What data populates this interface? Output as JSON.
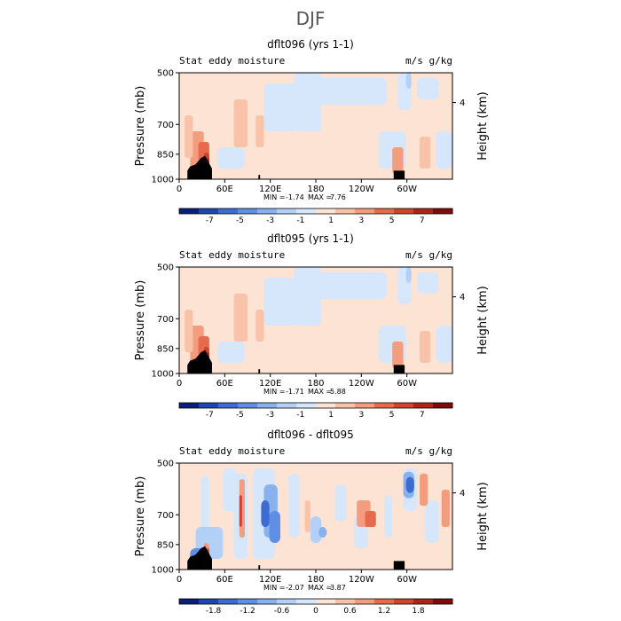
{
  "figure_title": "DJF",
  "colors": {
    "warm": [
      "#fde3d4",
      "#f9c3aa",
      "#f49c7e",
      "#e86a4d",
      "#d2432e",
      "#b12218",
      "#7f0a0a"
    ],
    "cool": [
      "#d6e6fb",
      "#b3d0f7",
      "#88b1ee",
      "#5f8fe2",
      "#3d6bd2",
      "#1f45b4",
      "#0a1f7a"
    ],
    "terrain": "#000000"
  },
  "chart_data": [
    {
      "type": "heatmap",
      "title": "dflt096 (yrs 1-1)",
      "left_label": "Stat eddy moisture",
      "units_label": "m/s g/kg",
      "ylabel": "Pressure (mb)",
      "ylabel_right": "Height (km)",
      "y_ticks": [
        "500",
        "700",
        "850",
        "1000"
      ],
      "y_right_ticks": [
        "4"
      ],
      "x_ticks": [
        "0",
        "60E",
        "120E",
        "180",
        "120W",
        "60W"
      ],
      "min_label": "MIN = ",
      "min_value": "-1.74",
      "max_label": "MAX = ",
      "max_value": "7.76",
      "colorbar_ticks": [
        "-7",
        "-5",
        "-3",
        "-1",
        "1",
        "3",
        "5",
        "7"
      ]
    },
    {
      "type": "heatmap",
      "title": "dflt095 (yrs 1-1)",
      "left_label": "Stat eddy moisture",
      "units_label": "m/s g/kg",
      "ylabel": "Pressure (mb)",
      "ylabel_right": "Height (km)",
      "y_ticks": [
        "500",
        "700",
        "850",
        "1000"
      ],
      "y_right_ticks": [
        "4"
      ],
      "x_ticks": [
        "0",
        "60E",
        "120E",
        "180",
        "120W",
        "60W"
      ],
      "min_label": "MIN = ",
      "min_value": "-1.71",
      "max_label": "MAX = ",
      "max_value": "5.88",
      "colorbar_ticks": [
        "-7",
        "-5",
        "-3",
        "-1",
        "1",
        "3",
        "5",
        "7"
      ]
    },
    {
      "type": "heatmap",
      "title": "dflt096 - dflt095",
      "left_label": "Stat eddy moisture",
      "units_label": "m/s g/kg",
      "ylabel": "Pressure (mb)",
      "ylabel_right": "Height (km)",
      "y_ticks": [
        "500",
        "700",
        "850",
        "1000"
      ],
      "y_right_ticks": [
        "4"
      ],
      "x_ticks": [
        "0",
        "60E",
        "120E",
        "180",
        "120W",
        "60W"
      ],
      "min_label": "MIN = ",
      "min_value": "-2.07",
      "max_label": "MAX = ",
      "max_value": "3.87",
      "colorbar_ticks": [
        "-1.8",
        "-1.2",
        "-0.6",
        "0",
        "0.6",
        "1.2",
        "1.8"
      ]
    }
  ]
}
